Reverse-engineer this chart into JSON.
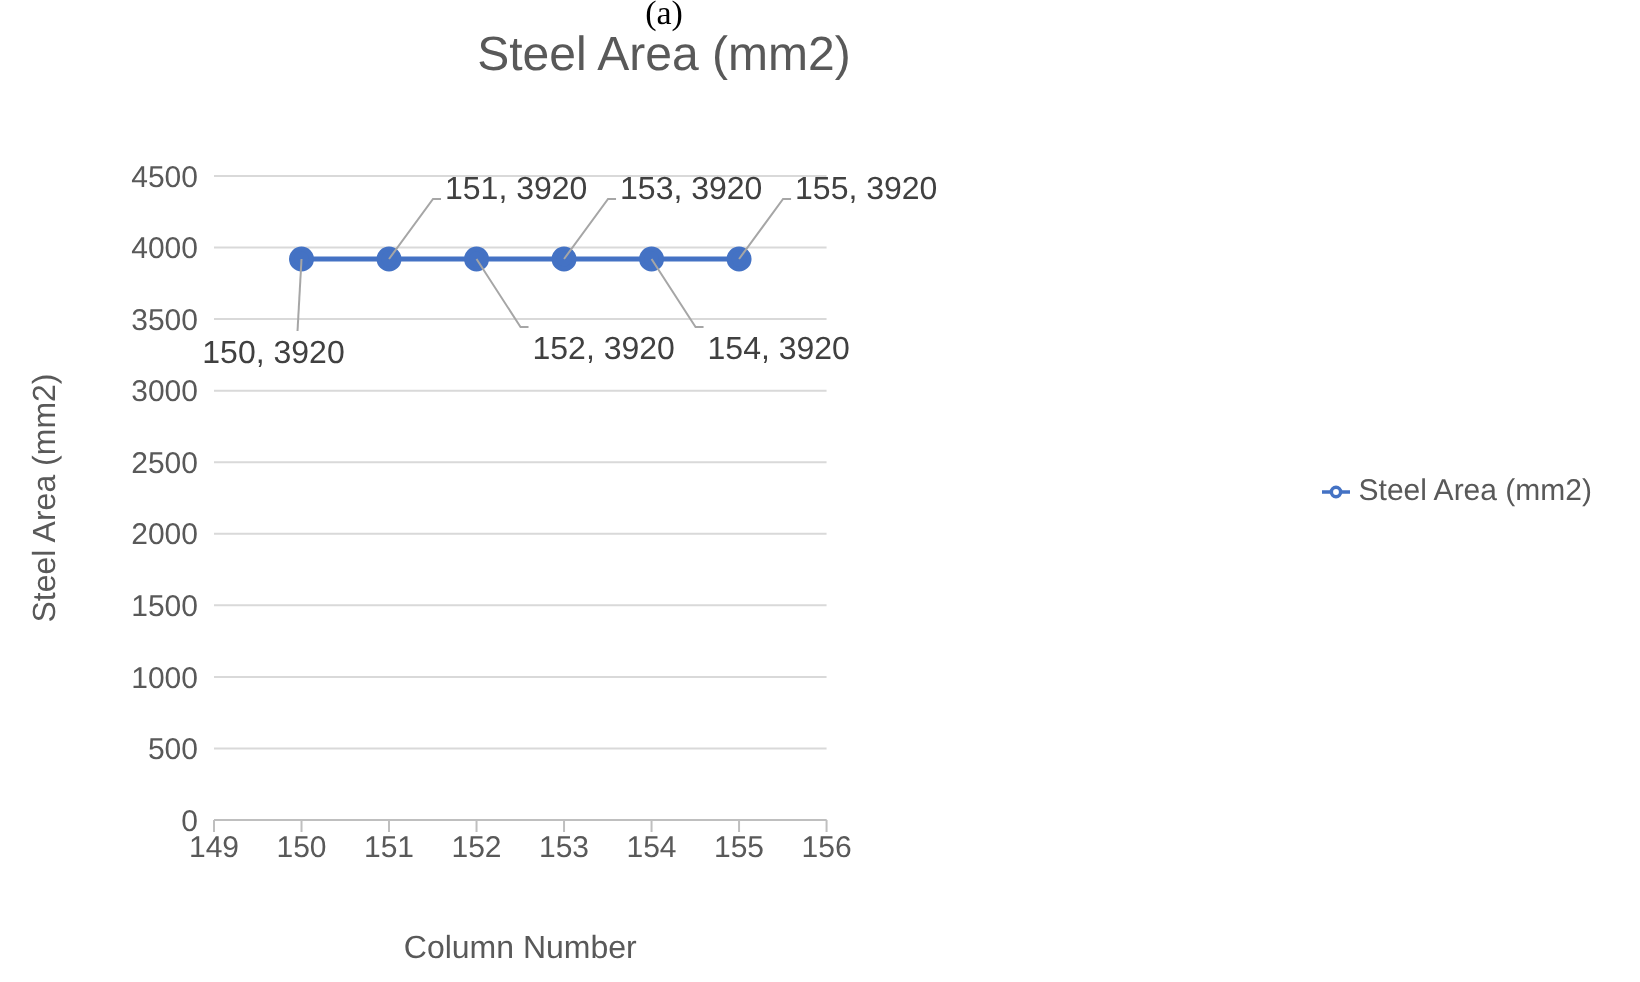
{
  "chart_data": {
    "type": "line",
    "title": "Steel Area (mm2)",
    "xlabel": "Column Number",
    "ylabel": "Steel Area (mm2)",
    "annotations": [
      "(a)"
    ],
    "x": [
      150,
      151,
      152,
      153,
      154,
      155
    ],
    "series": [
      {
        "name": "Steel Area (mm2)",
        "color": "#4472c4",
        "values": [
          3920,
          3920,
          3920,
          3920,
          3920,
          3920
        ],
        "value_labels": [
          "150, 3920",
          "151, 3920",
          "152, 3920",
          "153, 3920",
          "154, 3920",
          "155, 3920"
        ]
      }
    ],
    "xlim": [
      149,
      156
    ],
    "xticks": [
      149,
      150,
      151,
      152,
      153,
      154,
      155,
      156
    ],
    "ylim": [
      0,
      4500
    ],
    "yticks": [
      0,
      500,
      1000,
      1500,
      2000,
      2500,
      3000,
      3500,
      4000,
      4500
    ],
    "grid": "y",
    "legend": "right",
    "marker": "circle",
    "line_style": "solid"
  }
}
